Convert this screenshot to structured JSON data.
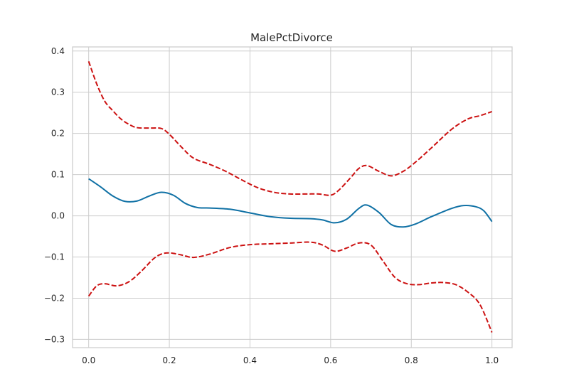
{
  "chart_data": {
    "type": "line",
    "title": "MalePctDivorce",
    "xlabel": "",
    "ylabel": "",
    "xlim": [
      -0.04,
      1.05
    ],
    "ylim": [
      -0.32,
      0.41
    ],
    "x_ticks": [
      0.0,
      0.2,
      0.4,
      0.6,
      0.8,
      1.0
    ],
    "x_tick_labels": [
      "0.0",
      "0.2",
      "0.4",
      "0.6",
      "0.8",
      "1.0"
    ],
    "y_ticks": [
      -0.3,
      -0.2,
      -0.1,
      0.0,
      0.1,
      0.2,
      0.3,
      0.4
    ],
    "y_tick_labels": [
      "−0.3",
      "−0.2",
      "−0.1",
      "0.0",
      "0.1",
      "0.2",
      "0.3",
      "0.4"
    ],
    "grid": true,
    "legend": "none",
    "series": [
      {
        "style": "solid",
        "color": "#1071a5",
        "x": [
          0.0,
          0.03,
          0.06,
          0.09,
          0.12,
          0.15,
          0.18,
          0.21,
          0.24,
          0.27,
          0.3,
          0.35,
          0.4,
          0.45,
          0.5,
          0.55,
          0.58,
          0.61,
          0.64,
          0.67,
          0.69,
          0.72,
          0.75,
          0.78,
          0.81,
          0.85,
          0.9,
          0.93,
          0.96,
          0.98,
          1.0
        ],
        "y": [
          0.09,
          0.07,
          0.048,
          0.035,
          0.036,
          0.048,
          0.057,
          0.05,
          0.03,
          0.02,
          0.019,
          0.016,
          0.007,
          -0.002,
          -0.006,
          -0.007,
          -0.01,
          -0.017,
          -0.008,
          0.018,
          0.026,
          0.008,
          -0.021,
          -0.027,
          -0.02,
          -0.002,
          0.018,
          0.025,
          0.022,
          0.012,
          -0.014
        ]
      },
      {
        "style": "dashed",
        "color": "#cc1111",
        "x": [
          0.0,
          0.02,
          0.04,
          0.06,
          0.08,
          0.1,
          0.12,
          0.15,
          0.18,
          0.2,
          0.23,
          0.26,
          0.3,
          0.34,
          0.38,
          0.42,
          0.46,
          0.5,
          0.54,
          0.57,
          0.6,
          0.62,
          0.65,
          0.67,
          0.69,
          0.72,
          0.75,
          0.78,
          0.81,
          0.85,
          0.9,
          0.94,
          0.97,
          1.0
        ],
        "y": [
          0.375,
          0.32,
          0.278,
          0.255,
          0.235,
          0.222,
          0.214,
          0.213,
          0.212,
          0.198,
          0.167,
          0.14,
          0.125,
          0.108,
          0.087,
          0.068,
          0.057,
          0.053,
          0.053,
          0.053,
          0.05,
          0.062,
          0.093,
          0.115,
          0.122,
          0.108,
          0.097,
          0.108,
          0.13,
          0.165,
          0.21,
          0.235,
          0.243,
          0.253
        ]
      },
      {
        "style": "dashed",
        "color": "#cc1111",
        "x": [
          0.0,
          0.02,
          0.04,
          0.07,
          0.1,
          0.13,
          0.16,
          0.18,
          0.2,
          0.23,
          0.26,
          0.3,
          0.35,
          0.4,
          0.45,
          0.5,
          0.55,
          0.58,
          0.61,
          0.64,
          0.67,
          0.7,
          0.73,
          0.76,
          0.79,
          0.82,
          0.85,
          0.88,
          0.91,
          0.94,
          0.97,
          1.0
        ],
        "y": [
          -0.195,
          -0.17,
          -0.165,
          -0.17,
          -0.16,
          -0.135,
          -0.105,
          -0.093,
          -0.09,
          -0.095,
          -0.101,
          -0.093,
          -0.077,
          -0.07,
          -0.068,
          -0.066,
          -0.064,
          -0.071,
          -0.086,
          -0.078,
          -0.066,
          -0.071,
          -0.11,
          -0.15,
          -0.165,
          -0.167,
          -0.163,
          -0.162,
          -0.167,
          -0.185,
          -0.215,
          -0.283
        ]
      }
    ]
  }
}
